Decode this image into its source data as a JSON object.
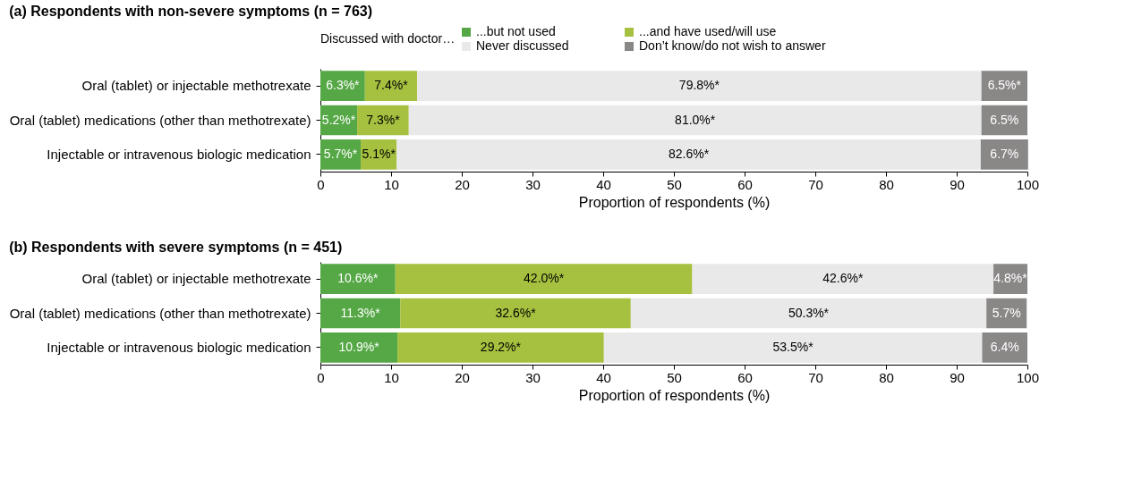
{
  "chart_data": [
    {
      "type": "bar",
      "orientation": "horizontal",
      "stacked": true,
      "title": "(a) Respondents with non-severe symptoms (n = 763)",
      "xlabel": "Proportion of respondents (%)",
      "legend_title": "Discussed with doctor…",
      "legend": "top",
      "grid": false,
      "xlim": [
        0,
        100
      ],
      "xticks": [
        0,
        10,
        20,
        30,
        40,
        50,
        60,
        70,
        80,
        90,
        100
      ],
      "categories": [
        "Oral (tablet) or injectable methotrexate",
        "Oral (tablet) medications (other than methotrexate)",
        "Injectable or intravenous biologic medication"
      ],
      "series": [
        {
          "name": "...but not used",
          "color": "#55a845",
          "values": [
            6.3,
            5.2,
            5.7
          ],
          "value_labels": [
            "6.3%*",
            "5.2%*",
            "5.7%*"
          ]
        },
        {
          "name": "...and have used/will use",
          "color": "#a5c13f",
          "values": [
            7.4,
            7.3,
            5.1
          ],
          "value_labels": [
            "7.4%*",
            "7.3%*",
            "5.1%*"
          ]
        },
        {
          "name": "Never discussed",
          "color": "#e9e9e9",
          "values": [
            79.8,
            81.0,
            82.6
          ],
          "value_labels": [
            "79.8%*",
            "81.0%*",
            "82.6%*"
          ]
        },
        {
          "name": "Don’t know/do not wish to answer",
          "color": "#8a8787",
          "values": [
            6.5,
            6.5,
            6.7
          ],
          "value_labels": [
            "6.5%*",
            "6.5%",
            "6.7%"
          ]
        }
      ]
    },
    {
      "type": "bar",
      "orientation": "horizontal",
      "stacked": true,
      "title": "(b) Respondents with severe symptoms (n = 451)",
      "xlabel": "Proportion of respondents (%)",
      "grid": false,
      "xlim": [
        0,
        100
      ],
      "xticks": [
        0,
        10,
        20,
        30,
        40,
        50,
        60,
        70,
        80,
        90,
        100
      ],
      "categories": [
        "Oral (tablet) or injectable methotrexate",
        "Oral (tablet) medications (other than methotrexate)",
        "Injectable or intravenous biologic medication"
      ],
      "series": [
        {
          "color": "#55a845",
          "values": [
            10.6,
            11.3,
            10.9
          ],
          "value_labels": [
            "10.6%*",
            "11.3%*",
            "10.9%*"
          ]
        },
        {
          "color": "#a5c13f",
          "values": [
            42.0,
            32.6,
            29.2
          ],
          "value_labels": [
            "42.0%*",
            "32.6%*",
            "29.2%*"
          ]
        },
        {
          "color": "#e9e9e9",
          "values": [
            42.6,
            50.3,
            53.5
          ],
          "value_labels": [
            "42.6%*",
            "50.3%*",
            "53.5%*"
          ]
        },
        {
          "color": "#8a8787",
          "values": [
            4.8,
            5.7,
            6.4
          ],
          "value_labels": [
            "4.8%*",
            "5.7%",
            "6.4%"
          ]
        }
      ]
    }
  ]
}
